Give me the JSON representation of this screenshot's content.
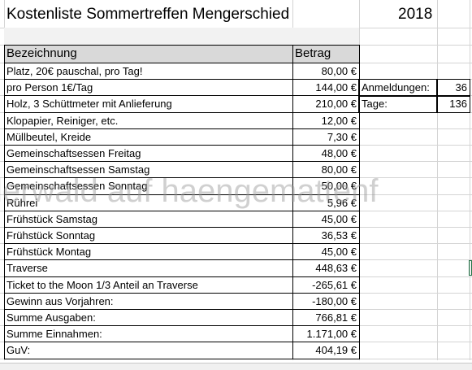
{
  "header": {
    "title": "Kostenliste Sommertreffen Mengerschied",
    "year": "2018"
  },
  "table": {
    "columns": [
      "Bezeichnung",
      "Betrag"
    ],
    "rows": [
      {
        "label": "Platz, 20€ pauschal, pro Tag!",
        "amount": "80,00 €"
      },
      {
        "label": "pro Person 1€/Tag",
        "amount": "144,00 €",
        "extra": [
          "Anmeldungen:",
          "36"
        ]
      },
      {
        "label": "Holz, 3 Schüttmeter mit Anlieferung",
        "amount": "210,00 €",
        "extra": [
          "Tage:",
          "136"
        ]
      },
      {
        "label": "Klopapier, Reiniger,  etc.",
        "amount": "12,00 €"
      },
      {
        "label": "Müllbeutel, Kreide",
        "amount": "7,30 €"
      },
      {
        "label": "Gemeinschaftsessen Freitag",
        "amount": "48,00 €"
      },
      {
        "label": "Gemeinschaftsessen Samstag",
        "amount": "80,00 €"
      },
      {
        "label": "Gemeinschaftsessen Sonntag",
        "amount": "50,00 €"
      },
      {
        "label": "Rührei",
        "amount": "5,96 €"
      },
      {
        "label": "Frühstück Samstag",
        "amount": "45,00 €"
      },
      {
        "label": "Frühstück Sonntag",
        "amount": "36,53 €"
      },
      {
        "label": "Frühstück Montag",
        "amount": "45,00 €"
      },
      {
        "label": "Traverse",
        "amount": "448,63 €"
      },
      {
        "label": "Ticket to the Moon 1/3 Anteil an Traverse",
        "amount": "-265,61 €"
      },
      {
        "label": "Gewinn aus Vorjahren:",
        "amount": "-180,00 €"
      },
      {
        "label": "Summe Ausgaben:",
        "amount": "766,81 €"
      },
      {
        "label": "Summe Einnahmen:",
        "amount": "1.171,00 €"
      },
      {
        "label": "GuV:",
        "amount": "404,19 €"
      }
    ]
  },
  "watermark": "lerwald auf haengemattenf"
}
